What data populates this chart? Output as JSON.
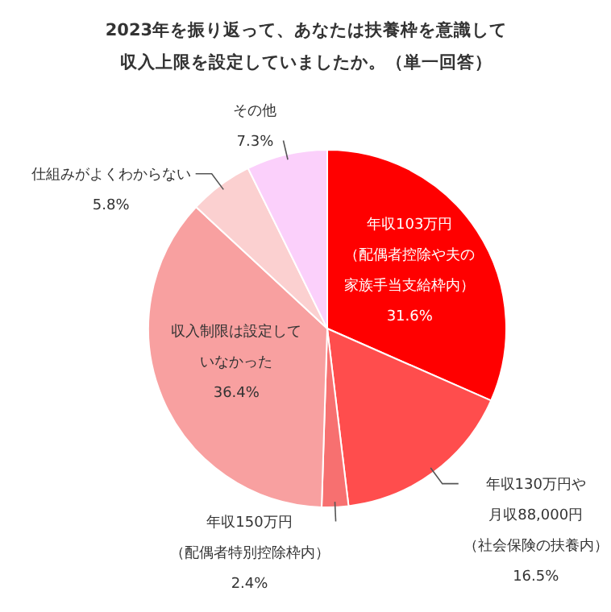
{
  "chart_data": {
    "type": "pie",
    "title": "2023年を振り返って、あなたは扶養枠を意識して収入上限を設定していましたか。（単一回答）",
    "categories": [
      "年収103万円（配偶者控除や夫の家族手当支給枠内）",
      "年収130万円や月収88,000円（社会保険の扶養内）",
      "年収150万円（配偶者特別控除枠内）",
      "収入制限は設定していなかった",
      "仕組みがよくわからない",
      "その他"
    ],
    "values": [
      31.6,
      16.5,
      2.4,
      36.4,
      5.8,
      7.3
    ],
    "value_labels": [
      "31.6%",
      "16.5%",
      "2.4%",
      "36.4%",
      "5.8%",
      "7.3%"
    ],
    "colors": [
      "#ff0000",
      "#ff4d4d",
      "#f77070",
      "#f8a0a0",
      "#fbd0d0",
      "#fbd0fb"
    ]
  }
}
